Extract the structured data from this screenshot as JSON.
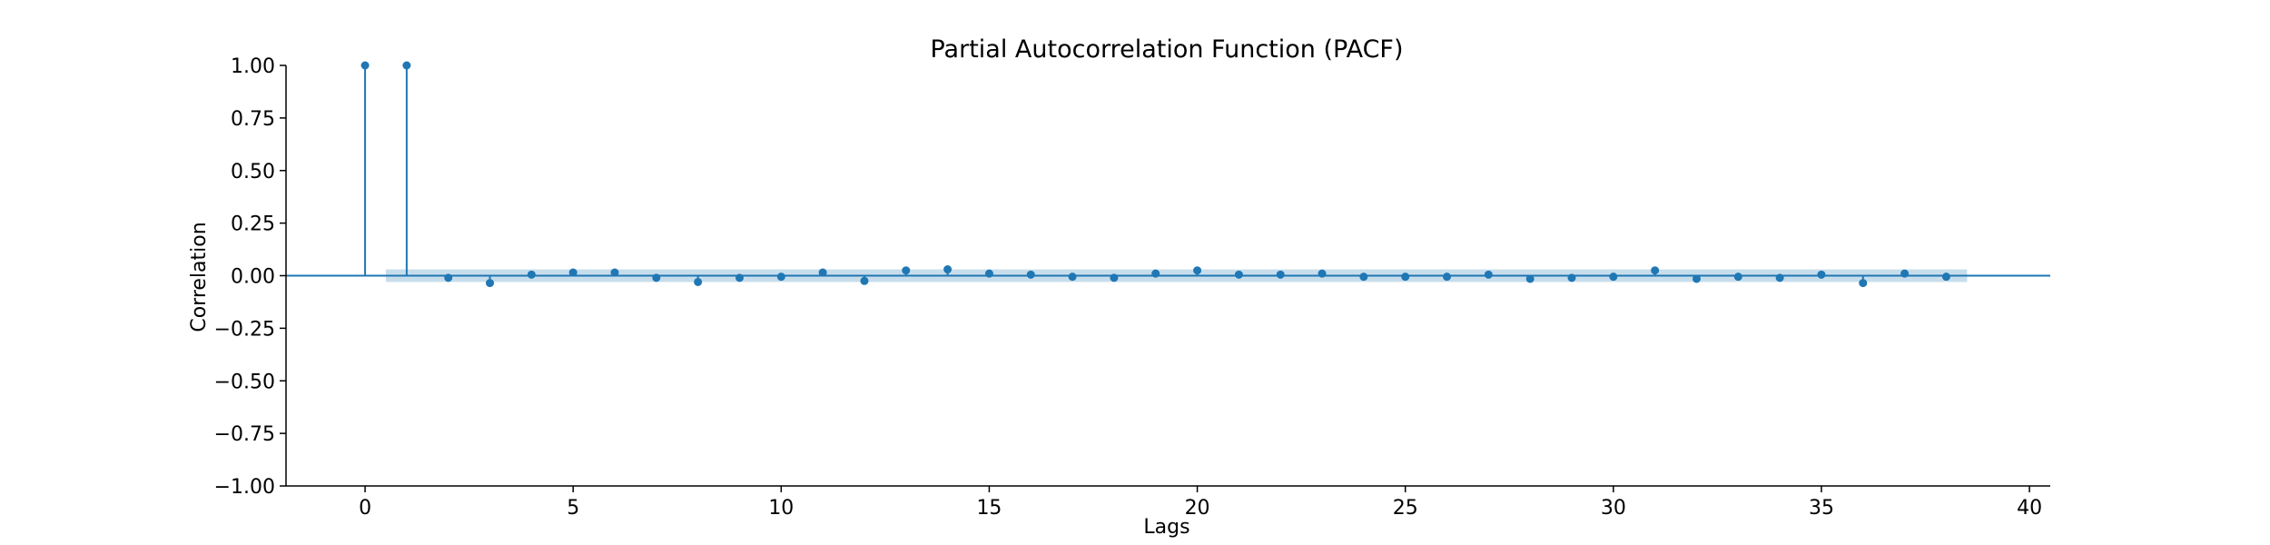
{
  "chart_data": {
    "type": "stem",
    "title": "Partial Autocorrelation Function (PACF)",
    "xlabel": "Lags",
    "ylabel": "Correlation",
    "xlim": [
      -1.9,
      40.5
    ],
    "ylim": [
      -1.0,
      1.0
    ],
    "x_ticks": [
      0,
      5,
      10,
      15,
      20,
      25,
      30,
      35,
      40
    ],
    "x_tick_labels": [
      "0",
      "5",
      "10",
      "15",
      "20",
      "25",
      "30",
      "35",
      "40"
    ],
    "y_ticks": [
      1.0,
      0.75,
      0.5,
      0.25,
      0.0,
      -0.25,
      -0.5,
      -0.75,
      -1.0
    ],
    "y_tick_labels": [
      "1.00",
      "0.75",
      "0.50",
      "0.25",
      "0.00",
      "−0.25",
      "−0.50",
      "−0.75",
      "−1.00"
    ],
    "grid": false,
    "confidence_band": {
      "lag_start": 0.5,
      "lag_end": 38.5,
      "lower": -0.03,
      "upper": 0.03
    },
    "lags": [
      0,
      1,
      2,
      3,
      4,
      5,
      6,
      7,
      8,
      9,
      10,
      11,
      12,
      13,
      14,
      15,
      16,
      17,
      18,
      19,
      20,
      21,
      22,
      23,
      24,
      25,
      26,
      27,
      28,
      29,
      30,
      31,
      32,
      33,
      34,
      35,
      36,
      37,
      38
    ],
    "values": [
      1.0,
      1.0,
      -0.01,
      -0.035,
      0.005,
      0.015,
      0.015,
      -0.01,
      -0.03,
      -0.01,
      -0.005,
      0.015,
      -0.025,
      0.025,
      0.03,
      0.01,
      0.005,
      -0.005,
      -0.01,
      0.01,
      0.025,
      0.005,
      0.005,
      0.01,
      -0.005,
      -0.005,
      -0.005,
      0.005,
      -0.015,
      -0.01,
      -0.005,
      0.025,
      -0.015,
      -0.005,
      -0.01,
      0.005,
      -0.035,
      0.01,
      -0.005
    ],
    "colors": {
      "stem": "#1f77b4",
      "band": "#1f77b4",
      "zero_line": "#1f77b4",
      "axis": "#000000"
    }
  }
}
